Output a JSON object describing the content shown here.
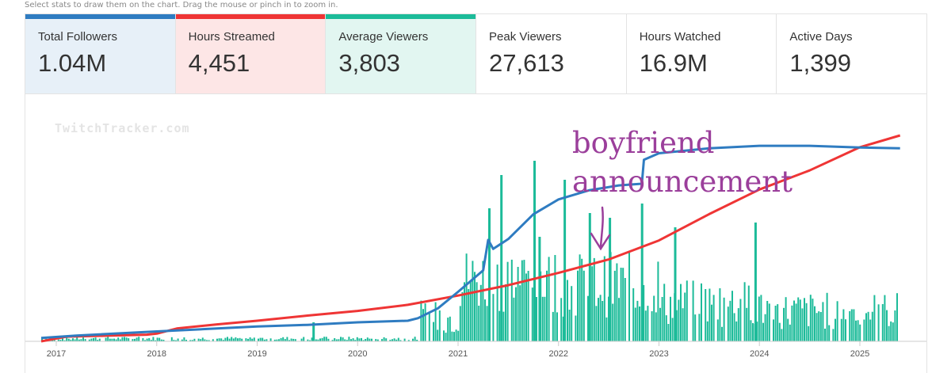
{
  "hint": "Select stats to draw them on the chart. Drag the mouse or pinch in to zoom in.",
  "stats": [
    {
      "label": "Total Followers",
      "value": "1.04M",
      "accent": "#2f7cc1",
      "bg": "#e7f0f8",
      "active": true
    },
    {
      "label": "Hours Streamed",
      "value": "4,451",
      "accent": "#ef3535",
      "bg": "#fde6e6",
      "active": true
    },
    {
      "label": "Average Viewers",
      "value": "3,803",
      "accent": "#1cbb99",
      "bg": "#e2f6f1",
      "active": true
    },
    {
      "label": "Peak Viewers",
      "value": "27,613",
      "accent": "",
      "bg": "#ffffff",
      "active": false
    },
    {
      "label": "Hours Watched",
      "value": "16.9M",
      "accent": "",
      "bg": "#ffffff",
      "active": false
    },
    {
      "label": "Active Days",
      "value": "1,399",
      "accent": "",
      "bg": "#ffffff",
      "active": false
    }
  ],
  "watermark": "TwitchTracker.com",
  "annotation": {
    "line1": "boyfriend",
    "line2": "announcement",
    "color": "#9b3f9b"
  },
  "chart_data": {
    "type": "bar+line",
    "x_ticks": [
      "2017",
      "2018",
      "2019",
      "2020",
      "2021",
      "2022",
      "2023",
      "2024",
      "2025"
    ],
    "xlim": [
      2016.85,
      2025.45
    ],
    "colors": {
      "followers": "#2f7cc1",
      "hours": "#ef3535",
      "viewers": "#1cbb99"
    },
    "series": [
      {
        "name": "Total Followers",
        "type": "line",
        "unit": "followers",
        "points": [
          [
            2016.85,
            20000
          ],
          [
            2017.2,
            35000
          ],
          [
            2018.0,
            60000
          ],
          [
            2018.5,
            75000
          ],
          [
            2019.0,
            90000
          ],
          [
            2019.5,
            100000
          ],
          [
            2020.0,
            115000
          ],
          [
            2020.5,
            125000
          ],
          [
            2020.6,
            140000
          ],
          [
            2020.8,
            200000
          ],
          [
            2021.0,
            300000
          ],
          [
            2021.25,
            430000
          ],
          [
            2021.3,
            615000
          ],
          [
            2021.35,
            560000
          ],
          [
            2021.5,
            620000
          ],
          [
            2021.75,
            770000
          ],
          [
            2022.0,
            860000
          ],
          [
            2022.3,
            915000
          ],
          [
            2022.6,
            945000
          ],
          [
            2022.83,
            955000
          ],
          [
            2022.85,
            1100000
          ],
          [
            2023.0,
            1140000
          ],
          [
            2023.5,
            1170000
          ],
          [
            2024.0,
            1185000
          ],
          [
            2024.5,
            1185000
          ],
          [
            2025.0,
            1175000
          ],
          [
            2025.4,
            1170000
          ]
        ]
      },
      {
        "name": "Hours Streamed",
        "type": "line",
        "unit": "hours",
        "points": [
          [
            2016.85,
            0
          ],
          [
            2017.1,
            90
          ],
          [
            2017.5,
            110
          ],
          [
            2017.9,
            130
          ],
          [
            2018.0,
            150
          ],
          [
            2018.2,
            250
          ],
          [
            2018.6,
            330
          ],
          [
            2019.0,
            400
          ],
          [
            2019.5,
            500
          ],
          [
            2020.0,
            590
          ],
          [
            2020.5,
            710
          ],
          [
            2021.0,
            890
          ],
          [
            2021.5,
            1090
          ],
          [
            2022.0,
            1330
          ],
          [
            2022.5,
            1590
          ],
          [
            2023.0,
            1960
          ],
          [
            2023.5,
            2470
          ],
          [
            2024.0,
            2950
          ],
          [
            2024.5,
            3320
          ],
          [
            2025.0,
            3770
          ],
          [
            2025.4,
            4000
          ]
        ]
      },
      {
        "name": "Average Viewers",
        "type": "bar",
        "unit": "viewers",
        "segments": [
          {
            "from": 2016.85,
            "to": 2020.6,
            "base": 300,
            "amp": 200
          },
          {
            "from": 2020.6,
            "to": 2021.0,
            "base": 2500,
            "amp": 1800
          },
          {
            "from": 2021.0,
            "to": 2022.0,
            "base": 6500,
            "amp": 3500
          },
          {
            "from": 2022.0,
            "to": 2023.0,
            "base": 6000,
            "amp": 3500
          },
          {
            "from": 2023.0,
            "to": 2024.0,
            "base": 4000,
            "amp": 2500
          },
          {
            "from": 2024.0,
            "to": 2025.4,
            "base": 3200,
            "amp": 2000
          }
        ],
        "spikes": [
          [
            2021.3,
            14000
          ],
          [
            2021.42,
            17500
          ],
          [
            2021.75,
            19000
          ],
          [
            2021.8,
            11000
          ],
          [
            2022.05,
            17000
          ],
          [
            2022.3,
            13500
          ],
          [
            2022.5,
            13000
          ],
          [
            2022.82,
            14500
          ],
          [
            2023.15,
            12000
          ],
          [
            2023.95,
            12500
          ],
          [
            2019.55,
            2000
          ]
        ]
      }
    ]
  }
}
